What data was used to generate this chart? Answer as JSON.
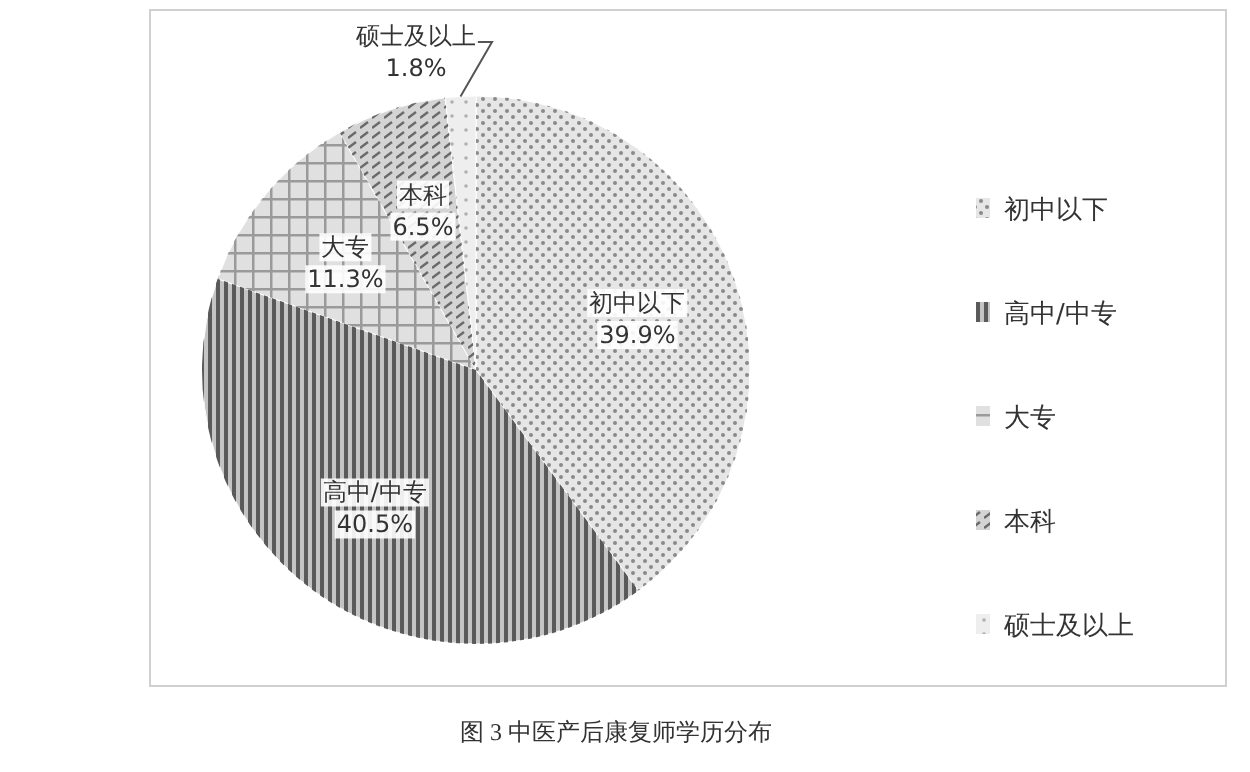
{
  "chart_data": {
    "type": "pie",
    "categories": [
      "初中以下",
      "高中/中专",
      "大专",
      "本科",
      "硕士及以上"
    ],
    "values": [
      39.9,
      40.5,
      11.3,
      6.5,
      1.8
    ],
    "value_labels": [
      "39.9%",
      "40.5%",
      "11.3%",
      "6.5%",
      "1.8%"
    ],
    "colors": [
      "#e6e6e6",
      "#c4c4c4",
      "#e0e0e0",
      "#d4d4d4",
      "#eeeeee"
    ],
    "legend": "right",
    "annotations": [
      "图 3 中医产后康复师学历分布"
    ]
  }
}
